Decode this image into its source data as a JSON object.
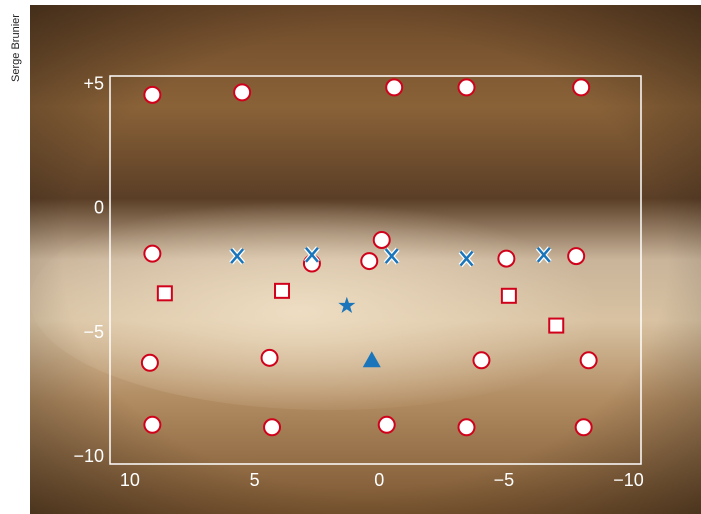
{
  "chart_data": {
    "type": "scatter",
    "credit": "Serge Brunier",
    "xlim": [
      10.8,
      -10.5
    ],
    "ylim": [
      -10.28,
      5.36
    ],
    "xticks": [
      10,
      5,
      0,
      {
        "value": -5,
        "label": "−5"
      },
      {
        "value": -10,
        "label": "−10"
      }
    ],
    "yticks": [
      {
        "value": 5,
        "label": "+5"
      },
      0,
      {
        "value": -5,
        "label": "−5"
      },
      {
        "value": -10,
        "label": "−10"
      }
    ],
    "series": [
      {
        "marker": "circle",
        "color": "#d0021b",
        "x": [
          9.1,
          5.5,
          -0.6,
          -3.5,
          -8.1,
          9.1,
          -0.1,
          2.7,
          0.4,
          -5.1,
          -7.9,
          9.2,
          4.4,
          -4.1,
          -8.4,
          9.1,
          4.3,
          -0.3,
          -3.5,
          -8.2
        ],
        "values": [
          4.6,
          4.7,
          4.9,
          4.9,
          4.9,
          -1.8,
          -1.25,
          -2.2,
          -2.1,
          -2.0,
          -1.9,
          -6.2,
          -6.0,
          -6.1,
          -6.1,
          -8.7,
          -8.8,
          -8.7,
          -8.8,
          -8.8
        ]
      },
      {
        "marker": "square",
        "color": "#d0021b",
        "x": [
          8.6,
          3.9,
          -5.2,
          -7.1
        ],
        "values": [
          -3.4,
          -3.3,
          -3.5,
          -4.7
        ]
      },
      {
        "marker": "x",
        "color": "#1a75bb",
        "x": [
          5.7,
          2.7,
          -0.5,
          -3.5,
          -6.6
        ],
        "values": [
          -1.9,
          -1.85,
          -1.9,
          -2.0,
          -1.85
        ]
      },
      {
        "marker": "star",
        "color": "#1a75bb",
        "x": [
          1.3
        ],
        "values": [
          -3.9
        ]
      },
      {
        "marker": "triangle",
        "color": "#1a75bb",
        "x": [
          0.3
        ],
        "values": [
          -6.1
        ]
      }
    ]
  }
}
